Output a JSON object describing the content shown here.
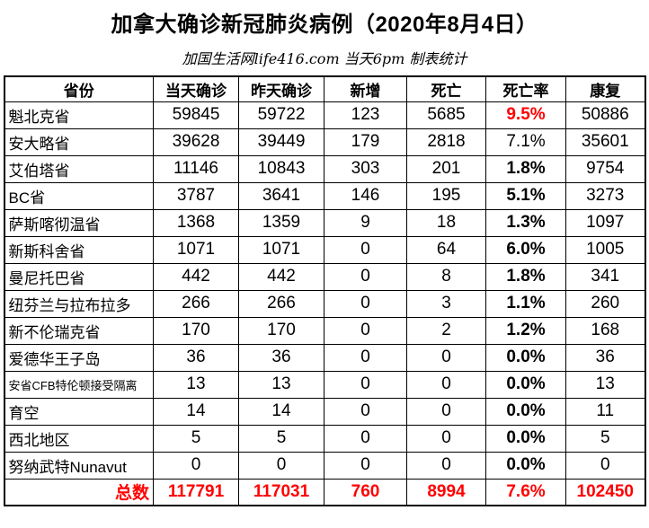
{
  "title": "加拿大确诊新冠肺炎病例（2020年8月4日）",
  "subtitle": "加国生活网life416.com 当天6pm 制表统计",
  "colors": {
    "accent_red": "#FF0000",
    "border": "#000000",
    "background": "#FFFFFF"
  },
  "chart_data": {
    "type": "table",
    "title": "加拿大确诊新冠肺炎病例（2020年8月4日）",
    "subtitle": "加国生活网life416.com 当天6pm 制表统计",
    "columns": [
      "省份",
      "当天确诊",
      "昨天确诊",
      "新增",
      "死亡",
      "死亡率",
      "康复"
    ],
    "rows": [
      {
        "province": "魁北克省",
        "today": "59845",
        "yesterday": "59722",
        "new": "123",
        "deaths": "5685",
        "death_rate": "9.5%",
        "recovered": "50886",
        "rate_style": "red-bold",
        "small": false
      },
      {
        "province": "安大略省",
        "today": "39628",
        "yesterday": "39449",
        "new": "179",
        "deaths": "2818",
        "death_rate": "7.1%",
        "recovered": "35601",
        "rate_style": "normal",
        "small": false
      },
      {
        "province": "艾伯塔省",
        "today": "11146",
        "yesterday": "10843",
        "new": "303",
        "deaths": "201",
        "death_rate": "1.8%",
        "recovered": "9754",
        "rate_style": "bold",
        "small": false
      },
      {
        "province": "BC省",
        "today": "3787",
        "yesterday": "3641",
        "new": "146",
        "deaths": "195",
        "death_rate": "5.1%",
        "recovered": "3273",
        "rate_style": "bold",
        "small": false
      },
      {
        "province": "萨斯喀彻温省",
        "today": "1368",
        "yesterday": "1359",
        "new": "9",
        "deaths": "18",
        "death_rate": "1.3%",
        "recovered": "1097",
        "rate_style": "bold",
        "small": false
      },
      {
        "province": "新斯科舍省",
        "today": "1071",
        "yesterday": "1071",
        "new": "0",
        "deaths": "64",
        "death_rate": "6.0%",
        "recovered": "1005",
        "rate_style": "bold",
        "small": false
      },
      {
        "province": "曼尼托巴省",
        "today": "442",
        "yesterday": "442",
        "new": "0",
        "deaths": "8",
        "death_rate": "1.8%",
        "recovered": "341",
        "rate_style": "bold",
        "small": false
      },
      {
        "province": "纽芬兰与拉布拉多",
        "today": "266",
        "yesterday": "266",
        "new": "0",
        "deaths": "3",
        "death_rate": "1.1%",
        "recovered": "260",
        "rate_style": "bold",
        "small": false
      },
      {
        "province": "新不伦瑞克省",
        "today": "170",
        "yesterday": "170",
        "new": "0",
        "deaths": "2",
        "death_rate": "1.2%",
        "recovered": "168",
        "rate_style": "bold",
        "small": false
      },
      {
        "province": "爱德华王子岛",
        "today": "36",
        "yesterday": "36",
        "new": "0",
        "deaths": "0",
        "death_rate": "0.0%",
        "recovered": "36",
        "rate_style": "bold",
        "small": false
      },
      {
        "province": "安省CFB特伦顿接受隔离",
        "today": "13",
        "yesterday": "13",
        "new": "0",
        "deaths": "0",
        "death_rate": "0.0%",
        "recovered": "13",
        "rate_style": "bold",
        "small": true
      },
      {
        "province": "育空",
        "today": "14",
        "yesterday": "14",
        "new": "0",
        "deaths": "0",
        "death_rate": "0.0%",
        "recovered": "11",
        "rate_style": "bold",
        "small": false
      },
      {
        "province": "西北地区",
        "today": "5",
        "yesterday": "5",
        "new": "0",
        "deaths": "0",
        "death_rate": "0.0%",
        "recovered": "5",
        "rate_style": "bold",
        "small": false
      },
      {
        "province": "努纳武特Nunavut",
        "today": "0",
        "yesterday": "0",
        "new": "0",
        "deaths": "0",
        "death_rate": "0.0%",
        "recovered": "0",
        "rate_style": "bold",
        "small": false
      }
    ],
    "total": {
      "label": "总数",
      "today": "117791",
      "yesterday": "117031",
      "new": "760",
      "deaths": "8994",
      "death_rate": "7.6%",
      "recovered": "102450"
    }
  }
}
